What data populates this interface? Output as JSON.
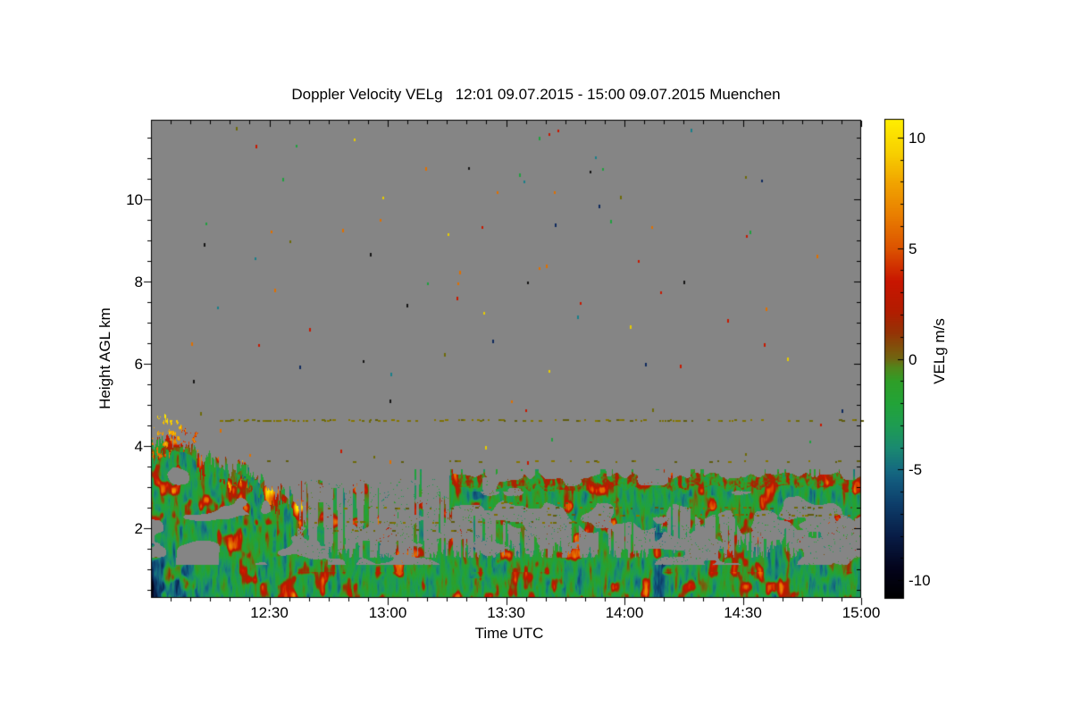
{
  "chart_data": {
    "type": "heatmap",
    "title": "Doppler Velocity VELg   12:01 09.07.2015 - 15:00 09.07.2015 Muenchen",
    "xlabel": "Time UTC",
    "ylabel": "Height AGL km",
    "x_axis": {
      "start": "12:00",
      "end": "15:00",
      "duration_min": 180,
      "major_ticks": [
        {
          "t_min": 30,
          "label": "12:30"
        },
        {
          "t_min": 60,
          "label": "13:00"
        },
        {
          "t_min": 90,
          "label": "13:30"
        },
        {
          "t_min": 120,
          "label": "14:00"
        },
        {
          "t_min": 150,
          "label": "14:30"
        },
        {
          "t_min": 180,
          "label": "15:00"
        }
      ],
      "minor_step_min": 5
    },
    "y_axis": {
      "range_km": [
        0.28,
        11.93
      ],
      "major_ticks": [
        {
          "h_km": 2,
          "label": "2"
        },
        {
          "h_km": 4,
          "label": "4"
        },
        {
          "h_km": 6,
          "label": "6"
        },
        {
          "h_km": 8,
          "label": "8"
        },
        {
          "h_km": 10,
          "label": "10"
        }
      ],
      "minor_step_km": 0.5
    },
    "colorbar": {
      "label": "VELg m/s",
      "vmin": -10.8,
      "vmax": 10.8,
      "major_ticks": [
        {
          "v": 10,
          "label": "10"
        },
        {
          "v": 5,
          "label": "5"
        },
        {
          "v": 0,
          "label": "0"
        },
        {
          "v": -5,
          "label": "-5"
        },
        {
          "v": -10,
          "label": "-10"
        }
      ],
      "minor_step": 1
    },
    "colors": {
      "nodata_gray": "#858585",
      "frame": "#000000",
      "page_background": "#ffffff",
      "dash_olive": [
        "#6e6a08",
        "#7c6f05",
        "#5f5c10",
        "#857500"
      ]
    },
    "colormap_stops": [
      [
        -10.8,
        "#000000"
      ],
      [
        -9.5,
        "#03031a"
      ],
      [
        -8.0,
        "#081c46"
      ],
      [
        -6.5,
        "#0d3f6b"
      ],
      [
        -5.5,
        "#125a7d"
      ],
      [
        -5.0,
        "#156a80"
      ],
      [
        -4.0,
        "#1a8a70"
      ],
      [
        -3.0,
        "#1e9c52"
      ],
      [
        -2.0,
        "#22a338"
      ],
      [
        -1.0,
        "#2f9e28"
      ],
      [
        -0.4,
        "#50871c"
      ],
      [
        0.0,
        "#6f6812"
      ],
      [
        0.5,
        "#80520b"
      ],
      [
        1.2,
        "#953305"
      ],
      [
        2.2,
        "#b31c00"
      ],
      [
        3.5,
        "#c81500"
      ],
      [
        5.0,
        "#dc5300"
      ],
      [
        6.5,
        "#e97e00"
      ],
      [
        8.0,
        "#f1a500"
      ],
      [
        9.3,
        "#f7cf00"
      ],
      [
        10.8,
        "#ffee00"
      ]
    ],
    "boundary_layer_top_km": [
      [
        0,
        4.3
      ],
      [
        6,
        4.15
      ],
      [
        12,
        3.9
      ],
      [
        18,
        3.6
      ],
      [
        24,
        3.35
      ],
      [
        30,
        3.05
      ],
      [
        34,
        2.9
      ],
      [
        37,
        2.7
      ],
      [
        39,
        1.9
      ],
      [
        42,
        1.5
      ],
      [
        50,
        1.35
      ],
      [
        65,
        1.3
      ],
      [
        80,
        1.4
      ],
      [
        100,
        1.35
      ],
      [
        120,
        1.45
      ],
      [
        140,
        1.55
      ],
      [
        160,
        1.5
      ],
      [
        180,
        1.5
      ]
    ],
    "elevated_layer": {
      "t_start_min": 76,
      "t_end_min": 180,
      "top_km": 3.3,
      "base_km": 2.3
    },
    "dashed_lines": [
      {
        "h_km": 4.62,
        "t_min": [
          14,
          180
        ],
        "density": 0.42
      },
      {
        "h_km": 3.62,
        "t_min": [
          20,
          180
        ],
        "density": 0.14
      },
      {
        "h_km": 2.5,
        "t_min": [
          40,
          180
        ],
        "density": 0.2
      },
      {
        "h_km": 2.32,
        "t_min": [
          85,
          180
        ],
        "density": 0.18
      },
      {
        "h_km": 2.15,
        "t_min": [
          40,
          112
        ],
        "density": 0.26
      },
      {
        "h_km": 1.95,
        "t_min": [
          42,
          85
        ],
        "density": 0.18
      },
      {
        "h_km": 2.62,
        "t_min": [
          88,
          118
        ],
        "density": 0.22
      }
    ],
    "features": [
      {
        "name": "convective-updraft-flame",
        "t_min": [
          0.5,
          7.5
        ],
        "h_km": [
          3.7,
          4.8
        ]
      },
      {
        "name": "updraft-spikes",
        "t_min": [
          7.5,
          12
        ],
        "h_km": [
          3.85,
          4.5
        ]
      },
      {
        "name": "downdraft-teal-region",
        "t_min": [
          0,
          19
        ],
        "h_km": [
          0.28,
          2.6
        ]
      },
      {
        "name": "downdraft-streak",
        "t_min": [
          80,
          85
        ],
        "h_km": [
          0.8,
          2.9
        ],
        "strength": 3.2
      },
      {
        "name": "downdraft-streak",
        "t_min": [
          127,
          132
        ],
        "h_km": [
          0.28,
          1.9
        ],
        "strength": 3.5
      },
      {
        "name": "downdraft-streak",
        "t_min": [
          156,
          160
        ],
        "h_km": [
          0.28,
          1.6
        ],
        "strength": 2.8
      }
    ],
    "speckles": {
      "count": 90,
      "h_range_km": [
        3.4,
        11.8
      ],
      "palette": [
        [
          "#c81800",
          0.2
        ],
        [
          "#e07000",
          0.18
        ],
        [
          "#e6cc00",
          0.12
        ],
        [
          "#6e6a08",
          0.1
        ],
        [
          "#151515",
          0.1
        ],
        [
          "#0f2a5e",
          0.1
        ],
        [
          "#1a7f8a",
          0.1
        ],
        [
          "#21a040",
          0.1
        ]
      ]
    },
    "seed": 42
  }
}
